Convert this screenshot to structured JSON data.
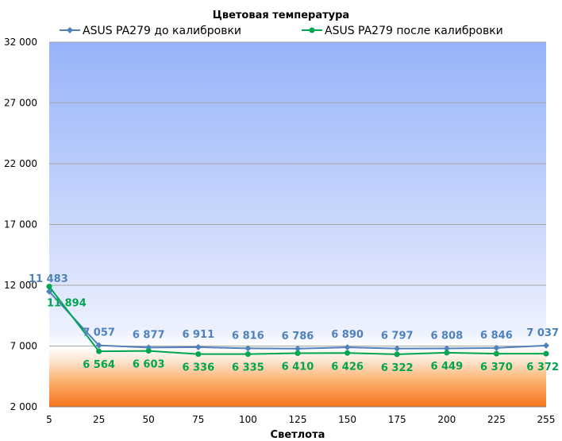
{
  "chart_data": {
    "type": "line",
    "title": "Цветовая температура",
    "xlabel": "Светлота",
    "ylabel": "",
    "x": [
      5,
      25,
      50,
      75,
      100,
      125,
      150,
      175,
      200,
      225,
      255
    ],
    "x_tick_labels": [
      "5",
      "25",
      "50",
      "75",
      "100",
      "125",
      "150",
      "175",
      "200",
      "225",
      "255"
    ],
    "ylim": [
      2000,
      32000
    ],
    "y_ticks": [
      2000,
      7000,
      12000,
      17000,
      22000,
      27000,
      32000
    ],
    "y_tick_labels": [
      "2 000",
      "7 000",
      "12 000",
      "17 000",
      "22 000",
      "27 000",
      "32 000"
    ],
    "grid": true,
    "legend_position": "top",
    "series": [
      {
        "name": "ASUS PA279 до калибровки",
        "color": "#4f81bd",
        "marker": "diamond",
        "values": [
          11483,
          7057,
          6877,
          6911,
          6816,
          6786,
          6890,
          6797,
          6808,
          6846,
          7037
        ],
        "labels": [
          "11 483",
          "7 057",
          "6 877",
          "6 911",
          "6 816",
          "6 786",
          "6 890",
          "6 797",
          "6 808",
          "6 846",
          "7 037"
        ]
      },
      {
        "name": "ASUS PA279 после калибровки",
        "color": "#00a550",
        "marker": "circle",
        "values": [
          11894,
          6564,
          6603,
          6336,
          6335,
          6410,
          6426,
          6322,
          6449,
          6370,
          6372
        ],
        "labels": [
          "11 894",
          "6 564",
          "6 603",
          "6 336",
          "6 335",
          "6 410",
          "6 426",
          "6 322",
          "6 449",
          "6 370",
          "6 372"
        ]
      }
    ]
  }
}
